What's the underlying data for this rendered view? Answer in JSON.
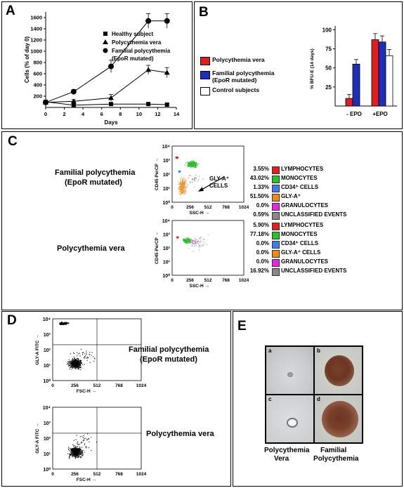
{
  "panels": {
    "A": {
      "label": "A",
      "chart_data": {
        "type": "line",
        "xlabel": "Days",
        "ylabel": "Cells (% of day 0)",
        "xlim": [
          0,
          14
        ],
        "ylim": [
          0,
          1700
        ],
        "xticks": [
          "0",
          "2",
          "4",
          "6",
          "8",
          "10",
          "12",
          "14"
        ],
        "yticks": [
          "200",
          "400",
          "600",
          "800",
          "1000",
          "1200",
          "1400",
          "1600"
        ],
        "x": [
          0,
          3,
          7,
          11,
          13
        ],
        "series": [
          {
            "name": "Healthy subject",
            "marker": "square",
            "values": [
              100,
              40,
              60,
              60,
              50
            ],
            "err": [
              15,
              15,
              20,
              20,
              15
            ]
          },
          {
            "name": "Polycythemia vera",
            "marker": "triangle",
            "values": [
              90,
              110,
              170,
              670,
              620
            ],
            "err": [
              15,
              30,
              60,
              80,
              90
            ]
          },
          {
            "name": "Familial polycythemia (EpoR mutated)",
            "marker": "circle",
            "values": [
              90,
              280,
              730,
              1540,
              1540
            ],
            "err": [
              15,
              40,
              110,
              130,
              130
            ]
          }
        ],
        "legend": [
          "Healthy subject",
          "Polycythemia vera",
          "Familial polycythemia",
          "(EpoR mutated)"
        ]
      }
    },
    "B": {
      "label": "B",
      "legend": [
        {
          "label": "Polycythemia vera",
          "color": "#e0201f"
        },
        {
          "label": "Familial polycythemia",
          "label2": "(EpoR mutated)",
          "color": "#1f2fb5"
        },
        {
          "label": "Control subjects",
          "color": "#ffffff"
        }
      ],
      "chart_data": {
        "type": "bar",
        "ylabel": "% BFU-E (14 days)",
        "ylim": [
          0,
          105
        ],
        "yticks": [
          "25",
          "50",
          "75",
          "100"
        ],
        "categories": [
          "- EPO",
          "+EPO"
        ],
        "series": [
          {
            "name": "Polycythemia vera",
            "color": "#e0201f",
            "values": [
              10,
              87
            ],
            "err": [
              5,
              8
            ]
          },
          {
            "name": "Familial polycythemia (EpoR mutated)",
            "color": "#1f2fb5",
            "values": [
              55,
              84
            ],
            "err": [
              6,
              8
            ]
          },
          {
            "name": "Control subjects",
            "color": "#ffffff",
            "values": [
              null,
              66
            ],
            "err": [
              null,
              8
            ]
          }
        ]
      }
    },
    "C": {
      "label": "C",
      "rows": [
        {
          "title1": "Familial polycythemia",
          "title2": "(EpoR mutated)",
          "plot_ylabel": "CD45 PerCP →",
          "plot_xlabel": "SSC-H →",
          "yticks": [
            "10⁰",
            "10¹",
            "10²",
            "10³",
            "10⁴"
          ],
          "xticks": [
            "0",
            "256",
            "512",
            "768",
            "1024"
          ],
          "annotation1": "GLY-A⁺",
          "annotation2": "CELLS",
          "stats": [
            {
              "pct": "3.55%",
              "label": "LYMPHOCYTES",
              "color": "#e02020"
            },
            {
              "pct": "43.02%",
              "label": "MONOCYTES",
              "color": "#27c227"
            },
            {
              "pct": "1.33%",
              "label": "CD34⁺ CELLS",
              "color": "#3d7fe6"
            },
            {
              "pct": "51.50%",
              "label": "GLY-A⁺",
              "color": "#f08a16"
            },
            {
              "pct": "0.0%",
              "label": "GRANULOCYTES",
              "color": "#e628e6"
            },
            {
              "pct": "0.59%",
              "label": "UNCLASSIFIED EVENTS",
              "color": "#888888"
            }
          ]
        },
        {
          "title1": "Polycythemia vera",
          "title2": "",
          "plot_ylabel": "CD45 PerCP →",
          "plot_xlabel": "SSC-H →",
          "yticks": [
            "10⁰",
            "10¹",
            "10²",
            "10³",
            "10⁴"
          ],
          "xticks": [
            "0",
            "256",
            "512",
            "768",
            "1024"
          ],
          "stats": [
            {
              "pct": "5.90%",
              "label": "LYMPHOCYTES",
              "color": "#e02020"
            },
            {
              "pct": "77.18%",
              "label": "MONOCYTES",
              "color": "#27c227"
            },
            {
              "pct": "0.0%",
              "label": "CD34⁺ CELLS",
              "color": "#3d7fe6"
            },
            {
              "pct": "0.0%",
              "label": "GLY-A⁺ CELLS",
              "color": "#f08a16"
            },
            {
              "pct": "0.0%",
              "label": "GRANULOCYTES",
              "color": "#e628e6"
            },
            {
              "pct": "16.92%",
              "label": "UNCLASSIFIED EVENTS",
              "color": "#888888"
            }
          ]
        }
      ]
    },
    "D": {
      "label": "D",
      "rows": [
        {
          "title1": "Familial polycythemia",
          "title2": "(EpoR mutated)",
          "ylabel": "GLY-A FITC →",
          "xlabel": "FSC-H →",
          "yticks": [
            "10⁰",
            "10¹",
            "10²",
            "10³",
            "10⁴"
          ],
          "xticks": [
            "0",
            "256",
            "512",
            "768",
            "1024"
          ]
        },
        {
          "title1": "Polycythemia vera",
          "title2": "",
          "ylabel": "GLY-A FITC →",
          "xlabel": "FSC-H →",
          "yticks": [
            "10⁰",
            "10¹",
            "10²",
            "10³",
            "10⁴"
          ],
          "xticks": [
            "0",
            "256",
            "512",
            "768",
            "1024"
          ]
        }
      ]
    },
    "E": {
      "label": "E",
      "tiles": [
        "a",
        "b",
        "c",
        "d"
      ],
      "caption_left1": "Polycythemia",
      "caption_left2": "Vera",
      "caption_right1": "Familial",
      "caption_right2": "Polycythemia"
    }
  }
}
